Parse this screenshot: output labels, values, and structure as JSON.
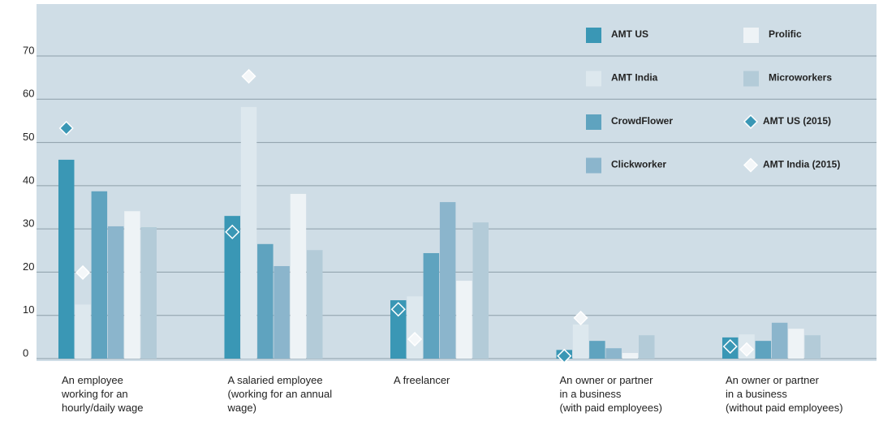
{
  "chart_data": {
    "type": "bar",
    "categories": [
      "An employee\nworking for an\nhourly/daily wage",
      "A salaried employee\n(working for an annual\nwage)",
      "A freelancer",
      "An owner or partner\nin a business\n(with paid employees)",
      "An owner or partner\nin a business\n(without paid employees)"
    ],
    "series": [
      {
        "name": "AMT US",
        "color": "#3a97b5",
        "values": [
          46,
          33,
          13.5,
          2,
          4.9
        ]
      },
      {
        "name": "AMT India",
        "color": "#dde8ee",
        "values": [
          12.5,
          58.2,
          14.4,
          7.9,
          5.6
        ]
      },
      {
        "name": "CrowdFlower",
        "color": "#5fa3bf",
        "values": [
          38.7,
          26.5,
          24.4,
          4.1,
          4.1
        ]
      },
      {
        "name": "Clickworker",
        "color": "#8bb5cc",
        "values": [
          30.6,
          21.4,
          36.2,
          2.4,
          8.3
        ]
      },
      {
        "name": "Prolific",
        "color": "#eef3f6",
        "values": [
          34.1,
          38.1,
          18,
          1.3,
          6.9
        ]
      },
      {
        "name": "Microworkers",
        "color": "#b3cbd8",
        "values": [
          30.4,
          25.1,
          31.5,
          5.4,
          5.4
        ]
      },
      {
        "name": "AMT US (2015)",
        "color": "#3a97b5",
        "marker": "diamond",
        "values": [
          53.3,
          29.3,
          11.4,
          0.6,
          2.8
        ]
      },
      {
        "name": "AMT India (2015)",
        "color": "#f4f7f9",
        "marker": "diamond",
        "values": [
          19.9,
          65.3,
          4.5,
          9.4,
          2.1
        ]
      }
    ],
    "ylim": [
      0,
      70
    ],
    "yticks": [
      0,
      10,
      20,
      30,
      40,
      50,
      60,
      70
    ],
    "grid": true
  }
}
